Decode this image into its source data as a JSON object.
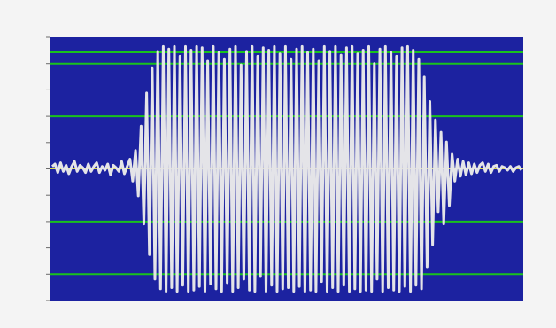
{
  "chart_data": {
    "type": "line",
    "title": "",
    "xlabel": "",
    "ylabel": "",
    "ylim": [
      -1,
      1
    ],
    "gridlines": [
      -0.8,
      -0.4,
      0.4,
      0.8
    ],
    "zero_line": 0,
    "grid": true,
    "legend": "none",
    "colors": {
      "background": "#1c22a0",
      "gridline": "#19c21c",
      "zero_line": "#e0de4a",
      "waveform": "#e4e4e8"
    },
    "series": [
      {
        "values": [
          0.02,
          0.04,
          -0.03,
          0.05,
          -0.02,
          0.03,
          -0.04,
          0.02,
          0.06,
          -0.02,
          0.03,
          0.01,
          -0.03,
          0.04,
          -0.02,
          0.02,
          0.05,
          -0.03,
          0.02,
          -0.01,
          0.04,
          -0.05,
          0.03,
          0.01,
          -0.02,
          0.06,
          -0.04,
          0.02,
          0.08,
          -0.1,
          0.15,
          -0.22,
          0.35,
          -0.45,
          0.62,
          -0.7,
          0.82,
          -0.9,
          0.96,
          -0.98,
          1.0,
          -1.0,
          0.98,
          -0.97,
          1.0,
          -1.0,
          0.92,
          -0.95,
          1.0,
          -1.0,
          0.97,
          -0.99,
          1.0,
          -0.96,
          0.99,
          -1.0,
          0.88,
          -0.94,
          1.0,
          -0.98,
          0.95,
          -1.0,
          0.9,
          -0.93,
          0.98,
          -1.0,
          1.0,
          -0.97,
          0.85,
          -0.9,
          0.96,
          -0.99,
          1.0,
          -1.0,
          0.92,
          -0.88,
          0.99,
          -1.0,
          0.97,
          -0.95,
          1.0,
          -1.0,
          0.94,
          -0.98,
          1.0,
          -0.97,
          0.9,
          -1.0,
          0.98,
          -0.96,
          1.0,
          -1.0,
          0.95,
          -0.99,
          0.98,
          -1.0,
          0.88,
          -0.92,
          1.0,
          -1.0,
          0.96,
          -0.97,
          1.0,
          -1.0,
          0.93,
          -0.95,
          0.99,
          -1.0,
          1.0,
          -0.98,
          0.94,
          -1.0,
          0.97,
          -0.99,
          1.0,
          -1.0,
          0.86,
          -0.9,
          0.98,
          -1.0,
          1.0,
          -0.97,
          0.95,
          -0.99,
          0.92,
          -1.0,
          0.99,
          -0.96,
          1.0,
          -1.0,
          0.97,
          -0.95,
          0.9,
          -0.98,
          0.75,
          -0.8,
          0.55,
          -0.62,
          0.4,
          -0.35,
          0.3,
          -0.45,
          0.22,
          -0.3,
          0.12,
          -0.1,
          0.08,
          -0.06,
          0.06,
          -0.05,
          0.05,
          -0.04,
          0.04,
          -0.03,
          0.03,
          0.05,
          -0.02,
          0.04,
          -0.03,
          0.02,
          0.03,
          -0.02,
          0.02,
          0.01,
          -0.01,
          0.02,
          -0.02,
          0.01,
          0.02,
          -0.01
        ]
      }
    ]
  }
}
